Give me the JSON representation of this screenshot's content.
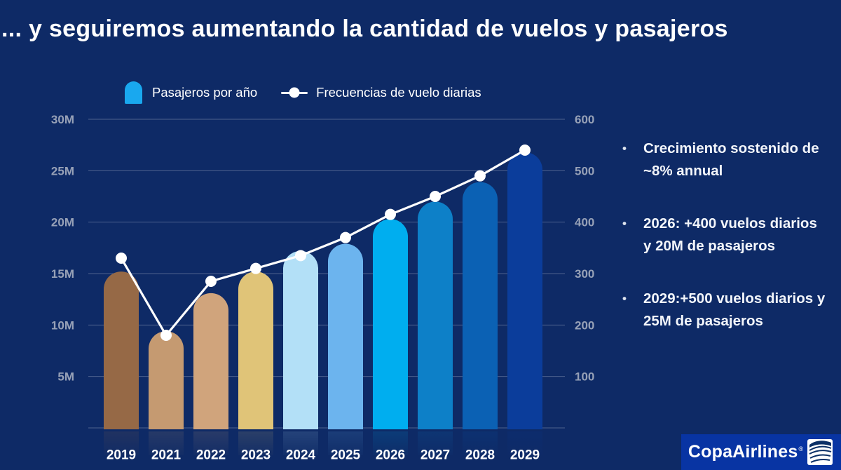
{
  "title": "... y seguiremos aumentando la cantidad de vuelos y pasajeros",
  "ui": {
    "bullet_char": "•"
  },
  "colors": {
    "background": "#0e2a66",
    "grid": "#8b97b5",
    "axis_label": "#97a1b7",
    "text": "#ffffff",
    "line": "#ffffff",
    "legend_bar_swatch": "#19a8ef",
    "logo_box": "#0834a3"
  },
  "legend": {
    "bar_label": "Pasajeros por año",
    "line_label": "Frecuencias de vuelo diarias"
  },
  "bullets": [
    {
      "text": "Crecimiento sostenido de ~8% annual"
    },
    {
      "text": "2026: +400 vuelos diarios y 20M de pasajeros"
    },
    {
      "text": "2029:+500 vuelos diarios y 25M de pasajeros"
    }
  ],
  "logo": {
    "brand": "CopaAirlines",
    "reg": "®",
    "icon": "copa-wave-flag-icon"
  },
  "chart_data": {
    "type": "bar+line combo",
    "title": "",
    "categories": [
      "2019",
      "2021",
      "2022",
      "2023",
      "2024",
      "2025",
      "2026",
      "2027",
      "2028",
      "2029"
    ],
    "series": [
      {
        "name": "Pasajeros por año",
        "type": "bar",
        "axis": "left",
        "unit": "millones de pasajeros",
        "values": [
          15.2,
          9.4,
          13.1,
          15.2,
          17.2,
          17.9,
          20.3,
          22.0,
          23.9,
          26.8
        ],
        "bar_colors": [
          "#966946",
          "#c59a71",
          "#d0a47c",
          "#e0c478",
          "#b3e0f7",
          "#6cb4ee",
          "#00aeef",
          "#0d80c8",
          "#0b61b4",
          "#0b3d9b"
        ]
      },
      {
        "name": "Frecuencias de vuelo diarias",
        "type": "line",
        "axis": "right",
        "unit": "vuelos diarios",
        "color": "#ffffff",
        "values": [
          330,
          180,
          285,
          310,
          335,
          370,
          415,
          450,
          490,
          540
        ]
      }
    ],
    "left_axis": {
      "min": 0,
      "max": 30,
      "tick_labels": [
        "5M",
        "10M",
        "15M",
        "20M",
        "25M",
        "30M"
      ]
    },
    "right_axis": {
      "min": 0,
      "max": 600,
      "tick_labels": [
        "100",
        "200",
        "300",
        "400",
        "500",
        "600"
      ]
    },
    "grid": "horizontal",
    "legend_position": "top"
  }
}
